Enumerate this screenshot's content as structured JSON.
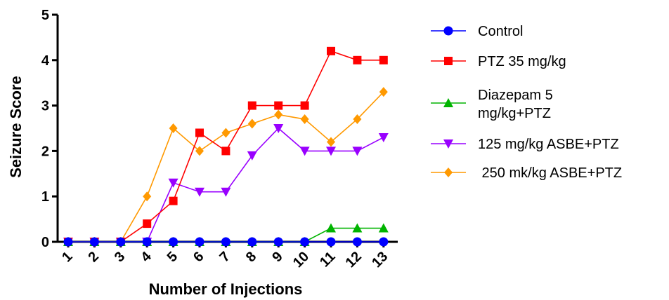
{
  "chart_data": {
    "type": "line",
    "xlabel": "Number of Injections",
    "ylabel": "Seizure Score",
    "ylim": [
      0,
      5
    ],
    "yticks": [
      "0",
      "1",
      "2",
      "3",
      "4",
      "5"
    ],
    "categories": [
      "1",
      "2",
      "3",
      "4",
      "5",
      "6",
      "7",
      "8",
      "9",
      "10",
      "11",
      "12",
      "13"
    ],
    "legend_position": "right",
    "grid": false,
    "series": [
      {
        "name": "Control",
        "marker": "circle",
        "color": "#0000ff",
        "values": [
          0,
          0,
          0,
          0,
          0,
          0,
          0,
          0,
          0,
          0,
          0,
          0,
          0
        ]
      },
      {
        "name": "PTZ 35 mg/kg",
        "marker": "square",
        "color": "#ff0000",
        "values": [
          0,
          0,
          0,
          0.4,
          0.9,
          2.4,
          2.0,
          3.0,
          3.0,
          3.0,
          4.2,
          4.0,
          4.0
        ]
      },
      {
        "name": "Diazepam 5 mg/kg+PTZ",
        "marker": "triangle-up",
        "color": "#00b400",
        "values": [
          0,
          0,
          0,
          0,
          0,
          0,
          0,
          0,
          0,
          0,
          0.3,
          0.3,
          0.3
        ]
      },
      {
        "name": "125 mg/kg ASBE+PTZ",
        "marker": "triangle-down",
        "color": "#9900ff",
        "values": [
          0,
          0,
          0,
          0,
          1.3,
          1.1,
          1.1,
          1.9,
          2.5,
          2.0,
          2.0,
          2.0,
          2.3
        ]
      },
      {
        "name": " 250 mk/kg ASBE+PTZ",
        "marker": "diamond",
        "color": "#ff9900",
        "values": [
          0,
          0,
          0,
          1.0,
          2.5,
          2.0,
          2.4,
          2.6,
          2.8,
          2.7,
          2.2,
          2.7,
          3.3
        ]
      }
    ],
    "legend_lines": [
      [
        "Control"
      ],
      [
        "PTZ 35 mg/kg"
      ],
      [
        "Diazepam 5",
        "mg/kg+PTZ"
      ],
      [
        "125 mg/kg ASBE+PTZ"
      ],
      [
        " 250 mk/kg ASBE+PTZ"
      ]
    ]
  }
}
